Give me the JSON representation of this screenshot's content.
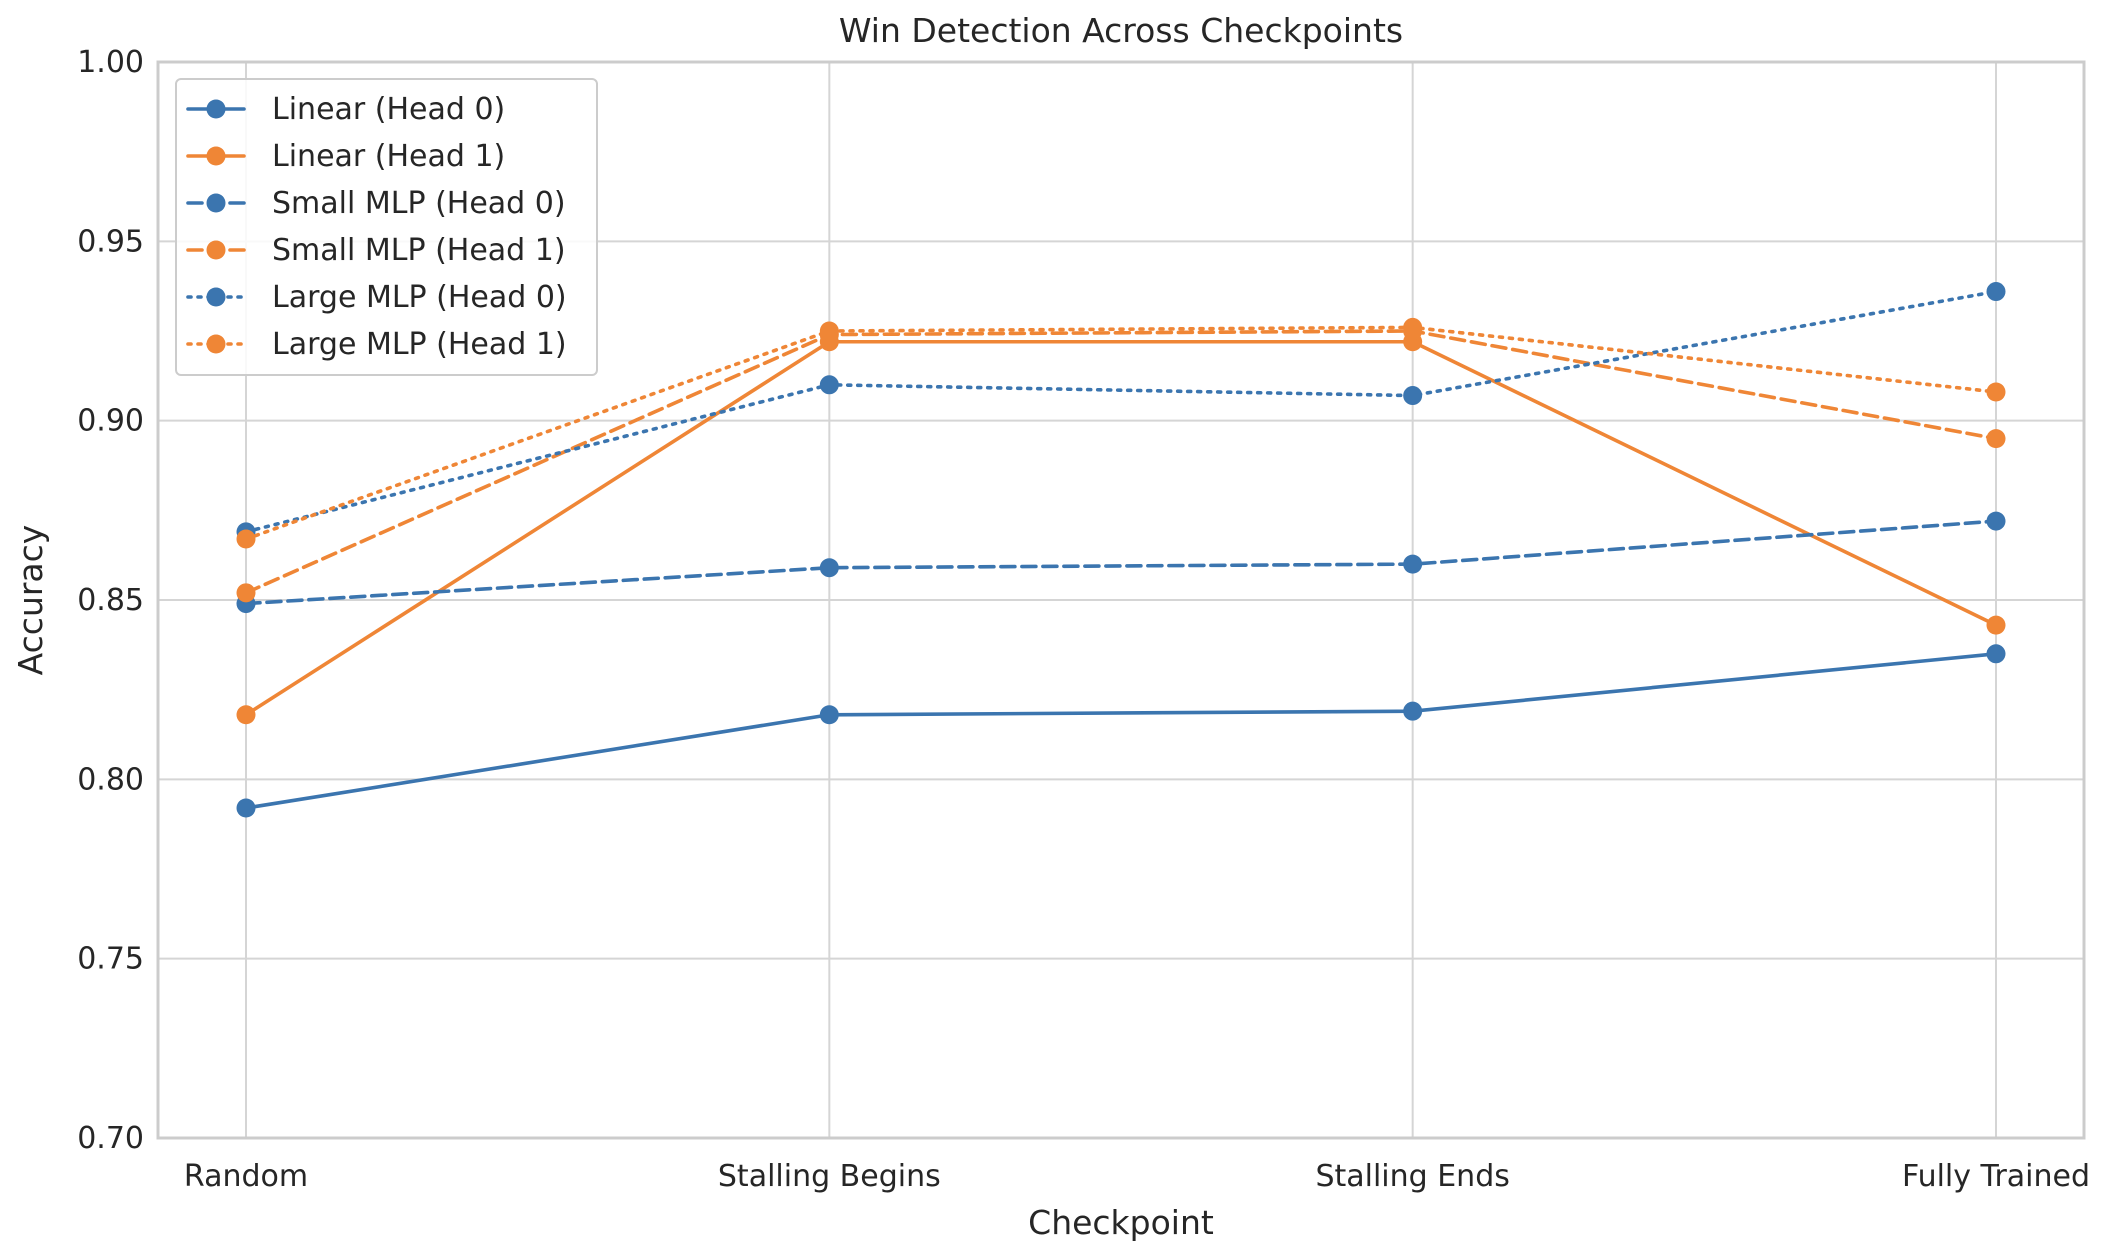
{
  "chart_data": {
    "type": "line",
    "title": "Win Detection Across Checkpoints",
    "xlabel": "Checkpoint",
    "ylabel": "Accuracy",
    "categories": [
      "Random",
      "Stalling Begins",
      "Stalling Ends",
      "Fully Trained"
    ],
    "ylim": [
      0.7,
      1.0
    ],
    "yticks": [
      0.7,
      0.75,
      0.8,
      0.85,
      0.9,
      0.95,
      1.0
    ],
    "ytick_labels": [
      "0.70",
      "0.75",
      "0.80",
      "0.85",
      "0.90",
      "0.95",
      "1.00"
    ],
    "grid": true,
    "legend_position": "top-left",
    "series": [
      {
        "name": "Linear (Head 0)",
        "color": "#3b75af",
        "linestyle": "solid",
        "marker": "circle",
        "values": [
          0.792,
          0.818,
          0.819,
          0.835
        ]
      },
      {
        "name": "Linear (Head 1)",
        "color": "#ef8636",
        "linestyle": "solid",
        "marker": "circle",
        "values": [
          0.818,
          0.922,
          0.922,
          0.843
        ]
      },
      {
        "name": "Small MLP (Head 0)",
        "color": "#3b75af",
        "linestyle": "dashed",
        "marker": "circle",
        "values": [
          0.849,
          0.859,
          0.86,
          0.872
        ]
      },
      {
        "name": "Small MLP (Head 1)",
        "color": "#ef8636",
        "linestyle": "dashed",
        "marker": "circle",
        "values": [
          0.852,
          0.924,
          0.925,
          0.895
        ]
      },
      {
        "name": "Large MLP (Head 0)",
        "color": "#3b75af",
        "linestyle": "dotted",
        "marker": "circle",
        "values": [
          0.869,
          0.91,
          0.907,
          0.936
        ]
      },
      {
        "name": "Large MLP (Head 1)",
        "color": "#ef8636",
        "linestyle": "dotted",
        "marker": "circle",
        "values": [
          0.867,
          0.925,
          0.926,
          0.908
        ]
      }
    ]
  }
}
